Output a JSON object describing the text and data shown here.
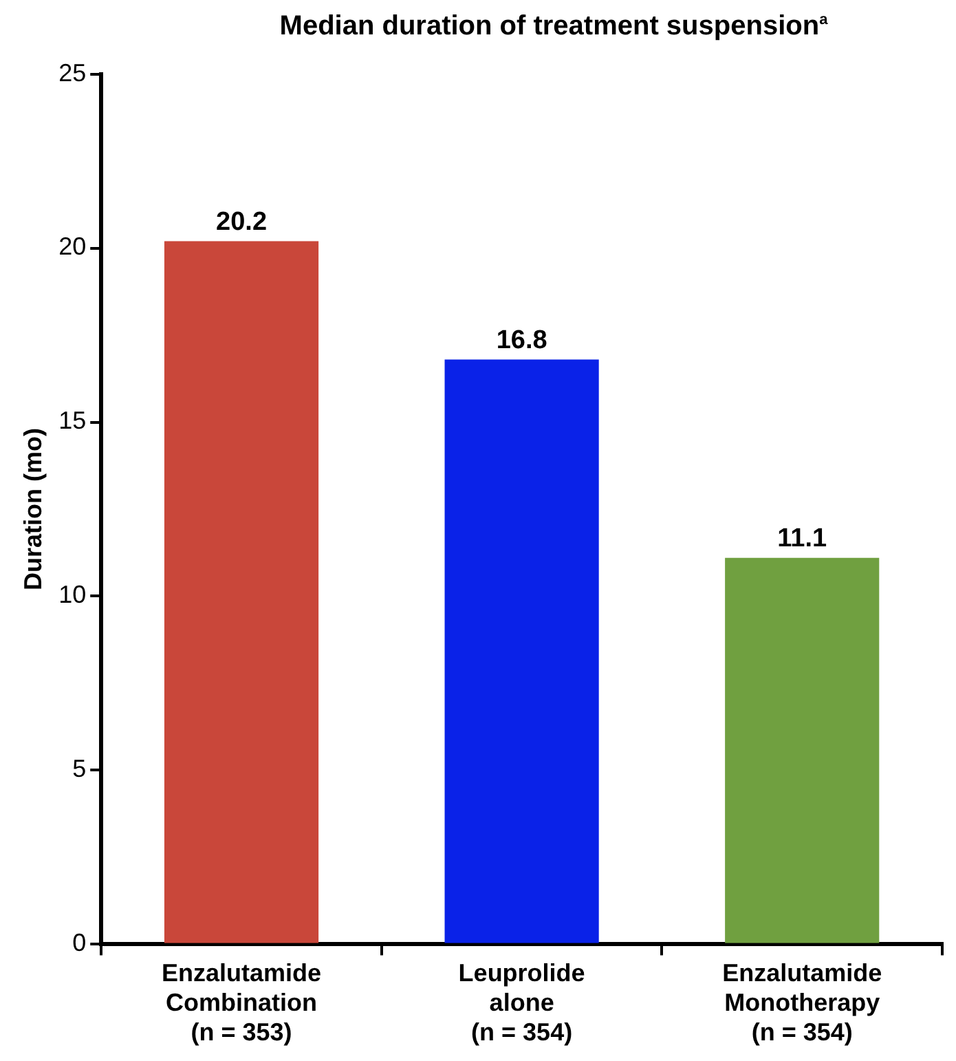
{
  "chart_data": {
    "type": "bar",
    "title": "Median duration of treatment suspension$^{a}$",
    "ylabel": "Duration (mo)",
    "categories": [
      "Enzalutamide\nCombination\n(n = 353)",
      "Leuprolide\nalone\n(n = 354)",
      "Enzalutamide\nMonotherapy\n(n = 354)"
    ],
    "values": [
      20.2,
      16.8,
      11.1
    ],
    "colors": [
      "#c9473a",
      "#0a22e8",
      "#70a040"
    ],
    "ylim": [
      0,
      25
    ],
    "yticks": [
      0,
      5,
      10,
      15,
      20,
      25
    ],
    "grid": false,
    "legend": false,
    "data_labels": true
  }
}
